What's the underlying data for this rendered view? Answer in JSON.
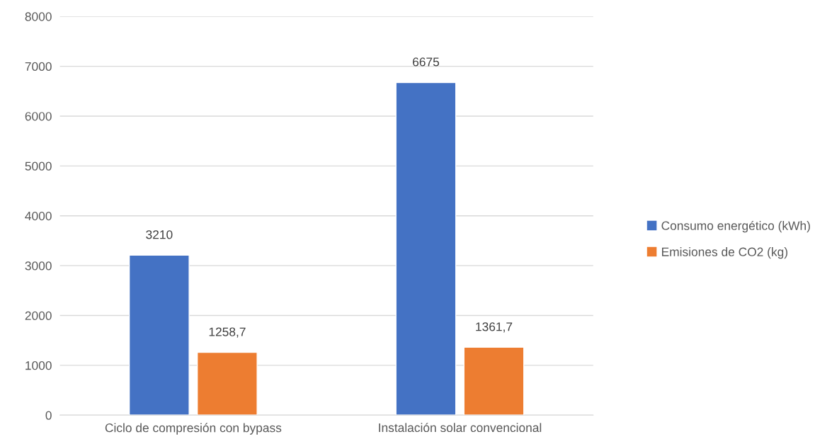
{
  "chart_data": {
    "type": "bar",
    "categories": [
      "Ciclo de compresión con bypass",
      "Instalación solar convencional"
    ],
    "series": [
      {
        "name": "Consumo energético (kWh)",
        "color": "#4472c4",
        "values": [
          3210,
          6675
        ],
        "value_labels": [
          "3210",
          "6675"
        ]
      },
      {
        "name": "Emisiones de CO2 (kg)",
        "color": "#ed7d31",
        "values": [
          1258.7,
          1361.7
        ],
        "value_labels": [
          "1258,7",
          "1361,7"
        ]
      }
    ],
    "ylim": [
      0,
      8000
    ],
    "yticks": [
      0,
      1000,
      2000,
      3000,
      4000,
      5000,
      6000,
      7000,
      8000
    ],
    "grid": "y",
    "legend": "right"
  }
}
